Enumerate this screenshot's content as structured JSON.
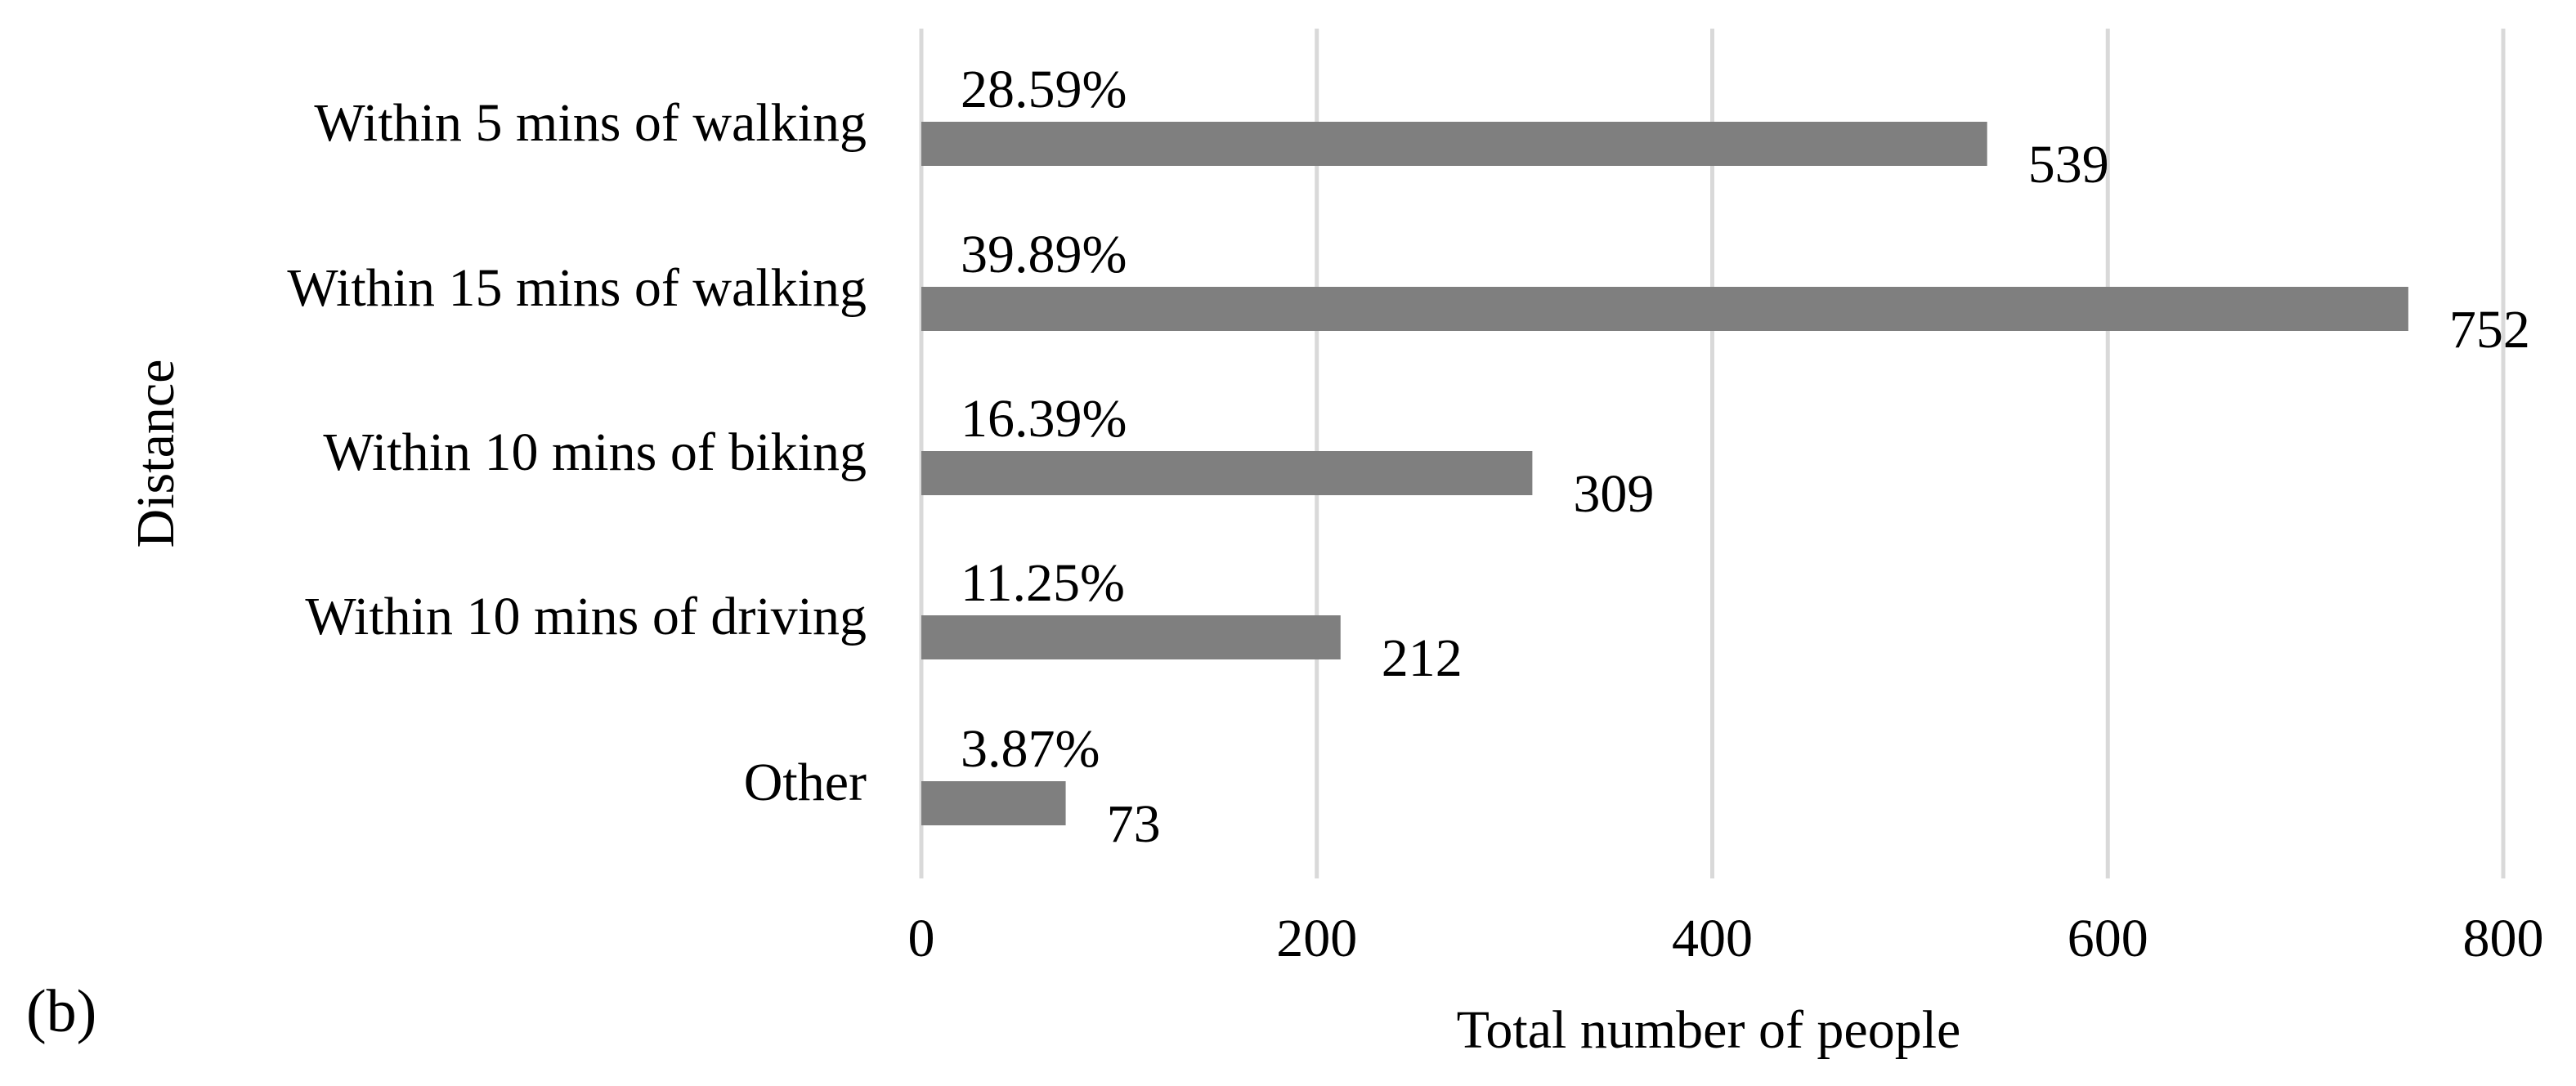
{
  "panel_label": "(b)",
  "chart_data": {
    "type": "bar",
    "orientation": "horizontal",
    "title": "",
    "xlabel": "Total number of people",
    "ylabel": "Distance",
    "xlim": [
      0,
      800
    ],
    "x_ticks": [
      0,
      200,
      400,
      600,
      800
    ],
    "grid": "vertical",
    "legend": "none",
    "bar_color": "#7f7f7f",
    "grid_color": "#d9d9d9",
    "categories": [
      "Within 5 mins of walking",
      "Within 15 mins of walking",
      "Within 10 mins of biking",
      "Within 10 mins of driving",
      "Other"
    ],
    "values": [
      539,
      752,
      309,
      212,
      73
    ],
    "value_labels": [
      "539",
      "752",
      "309",
      "212",
      "73"
    ],
    "percent_labels": [
      "28.59%",
      "39.89%",
      "16.39%",
      "11.25%",
      "3.87%"
    ]
  }
}
